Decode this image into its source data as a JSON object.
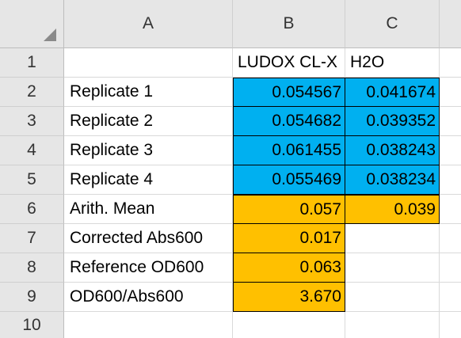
{
  "spreadsheet": {
    "columns": [
      "A",
      "B",
      "C"
    ],
    "rows": [
      "1",
      "2",
      "3",
      "4",
      "5",
      "6",
      "7",
      "8",
      "9",
      "10"
    ],
    "header_row": {
      "B": "LUDOX CL-X",
      "C": "H2O"
    },
    "labels": [
      "Replicate 1",
      "Replicate 2",
      "Replicate 3",
      "Replicate 4",
      "Arith. Mean",
      "Corrected Abs600",
      "Reference OD600",
      "OD600/Abs600"
    ],
    "ludox": [
      "0.054567",
      "0.054682",
      "0.061455",
      "0.055469",
      "0.057",
      "0.017",
      "0.063",
      "3.670"
    ],
    "h2o": [
      "0.041674",
      "0.039352",
      "0.038243",
      "0.038234",
      "0.039"
    ],
    "fill_colors": {
      "replicates": "#00b0f0",
      "results": "#ffc000"
    }
  }
}
